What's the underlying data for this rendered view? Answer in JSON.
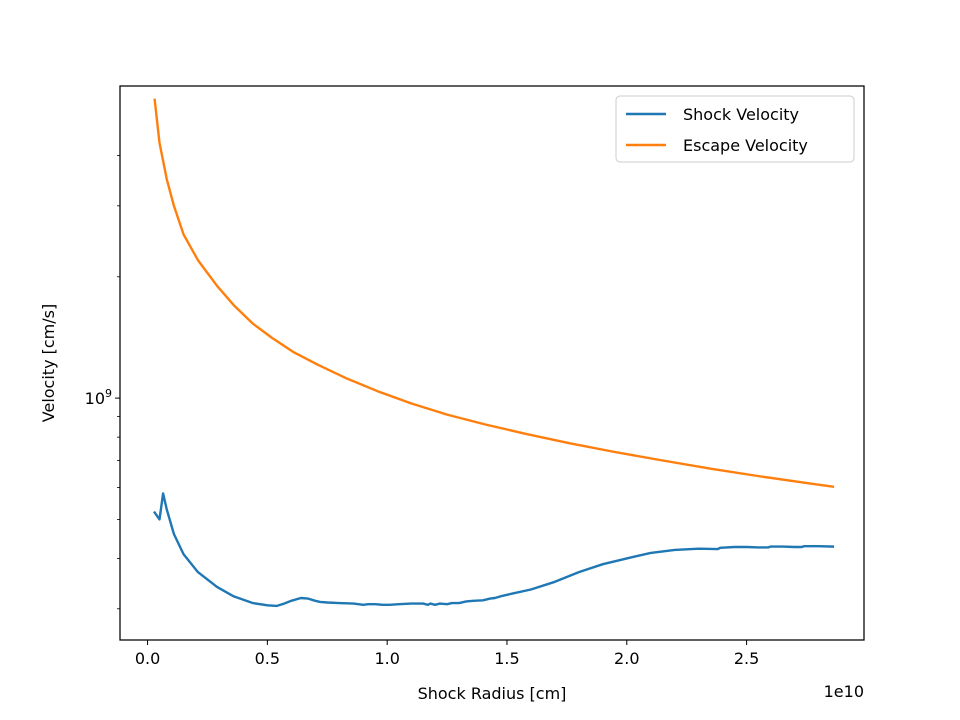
{
  "chart_data": {
    "type": "line",
    "xlabel": "Shock Radius [cm]",
    "ylabel": "Velocity [cm/s]",
    "x_offset_text": "1e10",
    "y_scale": "log",
    "x_ticks": [
      {
        "value": 0.0,
        "label": "0.0"
      },
      {
        "value": 0.5,
        "label": "0.5"
      },
      {
        "value": 1.0,
        "label": "1.0"
      },
      {
        "value": 1.5,
        "label": "1.5"
      },
      {
        "value": 2.0,
        "label": "2.0"
      },
      {
        "value": 2.5,
        "label": "2.5"
      }
    ],
    "y_major_tick": {
      "value": 1000000000,
      "base": "10",
      "exp": "9"
    },
    "y_minor_ticks": [
      300000000,
      400000000,
      500000000,
      600000000,
      700000000,
      800000000,
      900000000,
      2000000000,
      3000000000,
      4000000000
    ],
    "xlim": [
      -0.115,
      2.99
    ],
    "ylim": [
      251000000,
      5950000000
    ],
    "legend_position": "upper right",
    "series": [
      {
        "name": "Shock Velocity",
        "color": "#1f77b4",
        "x": [
          0.03,
          0.05,
          0.065,
          0.08,
          0.11,
          0.15,
          0.21,
          0.29,
          0.36,
          0.44,
          0.5,
          0.54,
          0.57,
          0.6,
          0.64,
          0.67,
          0.7,
          0.72,
          0.75,
          0.8,
          0.86,
          0.9,
          0.92,
          0.95,
          0.98,
          1.01,
          1.05,
          1.1,
          1.15,
          1.17,
          1.18,
          1.2,
          1.22,
          1.25,
          1.27,
          1.3,
          1.33,
          1.36,
          1.4,
          1.43,
          1.45,
          1.48,
          1.52,
          1.6,
          1.7,
          1.8,
          1.9,
          2.0,
          2.1,
          2.2,
          2.3,
          2.38,
          2.39,
          2.45,
          2.5,
          2.55,
          2.59,
          2.6,
          2.65,
          2.7,
          2.73,
          2.74,
          2.8,
          2.86
        ],
        "y": [
          520000000,
          500000000,
          580000000,
          530000000,
          460000000,
          410000000,
          370000000,
          340000000,
          322000000,
          310000000,
          306000000,
          305000000,
          309000000,
          314000000,
          319000000,
          318000000,
          314000000,
          312000000,
          311000000,
          310000000,
          309000000,
          307000000,
          308000000,
          308000000,
          307000000,
          307000000,
          308000000,
          309000000,
          309000000,
          307000000,
          309000000,
          307000000,
          309000000,
          308000000,
          310000000,
          310000000,
          313000000,
          314000000,
          315000000,
          318000000,
          319000000,
          323000000,
          327000000,
          335000000,
          350000000,
          370000000,
          387000000,
          400000000,
          413000000,
          420000000,
          423000000,
          422000000,
          425000000,
          427000000,
          427000000,
          426000000,
          426000000,
          428000000,
          428000000,
          427000000,
          427000000,
          429000000,
          429000000,
          428000000
        ]
      },
      {
        "name": "Escape Velocity",
        "color": "#ff7f0e",
        "x": [
          0.03,
          0.05,
          0.08,
          0.11,
          0.15,
          0.21,
          0.29,
          0.36,
          0.44,
          0.52,
          0.61,
          0.71,
          0.83,
          0.96,
          1.1,
          1.25,
          1.41,
          1.58,
          1.76,
          1.95,
          2.15,
          2.35,
          2.56,
          2.77,
          2.86
        ],
        "y": [
          5500000000,
          4300000000,
          3500000000,
          3000000000,
          2550000000,
          2200000000,
          1900000000,
          1700000000,
          1530000000,
          1410000000,
          1300000000,
          1210000000,
          1120000000,
          1040000000,
          970000000,
          910000000,
          860000000,
          815000000,
          773000000,
          735000000,
          700000000,
          668000000,
          639000000,
          613000000,
          603000000
        ]
      }
    ]
  }
}
